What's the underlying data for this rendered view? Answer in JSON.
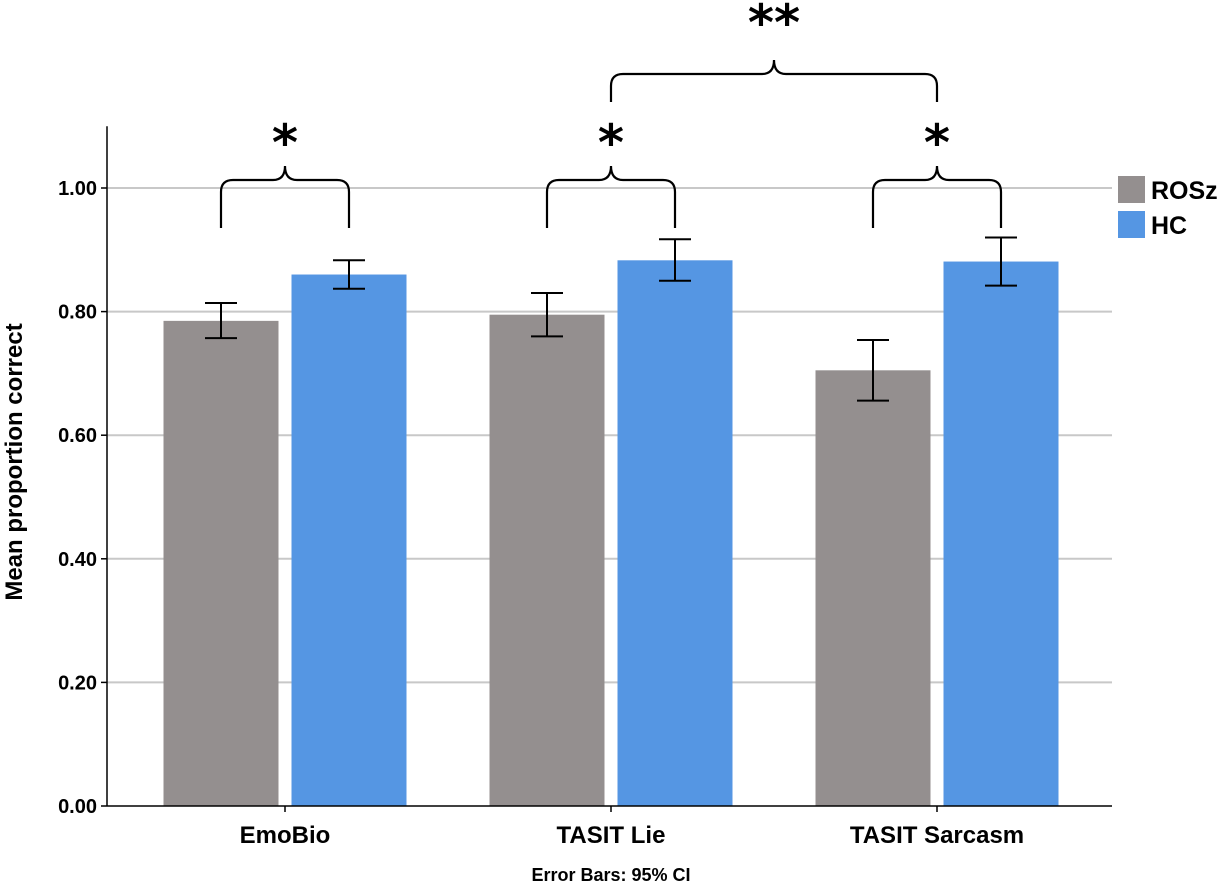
{
  "chart_data": {
    "type": "bar",
    "title": "",
    "xlabel": "",
    "ylabel": "Mean proportion correct",
    "ylim": [
      0,
      1.1
    ],
    "yticks": [
      0,
      0.2,
      0.4,
      0.6,
      0.8,
      1.0
    ],
    "ytick_labels": [
      "0.00",
      "0.20",
      "0.40",
      "0.60",
      "0.80",
      "1.00"
    ],
    "categories": [
      "EmoBio",
      "TASIT Lie",
      "TASIT Sarcasm"
    ],
    "series": [
      {
        "name": "ROSz",
        "color": "#948f8f",
        "values": [
          0.785,
          0.795,
          0.705
        ],
        "ci_low": [
          0.757,
          0.76,
          0.656
        ],
        "ci_high": [
          0.814,
          0.83,
          0.754
        ]
      },
      {
        "name": "HC",
        "color": "#5596e3",
        "values": [
          0.86,
          0.883,
          0.881
        ],
        "ci_low": [
          0.837,
          0.85,
          0.842
        ],
        "ci_high": [
          0.883,
          0.917,
          0.92
        ]
      }
    ],
    "grid": true,
    "legend_position": "right",
    "footnote": "Error Bars: 95% CI",
    "annotations": [
      {
        "label": "*",
        "between": "ROSz vs HC",
        "category": "EmoBio"
      },
      {
        "label": "*",
        "between": "ROSz vs HC",
        "category": "TASIT Lie"
      },
      {
        "label": "*",
        "between": "ROSz vs HC",
        "category": "TASIT Sarcasm"
      },
      {
        "label": "**",
        "between": "TASIT Lie vs TASIT Sarcasm",
        "category": "across"
      }
    ]
  }
}
